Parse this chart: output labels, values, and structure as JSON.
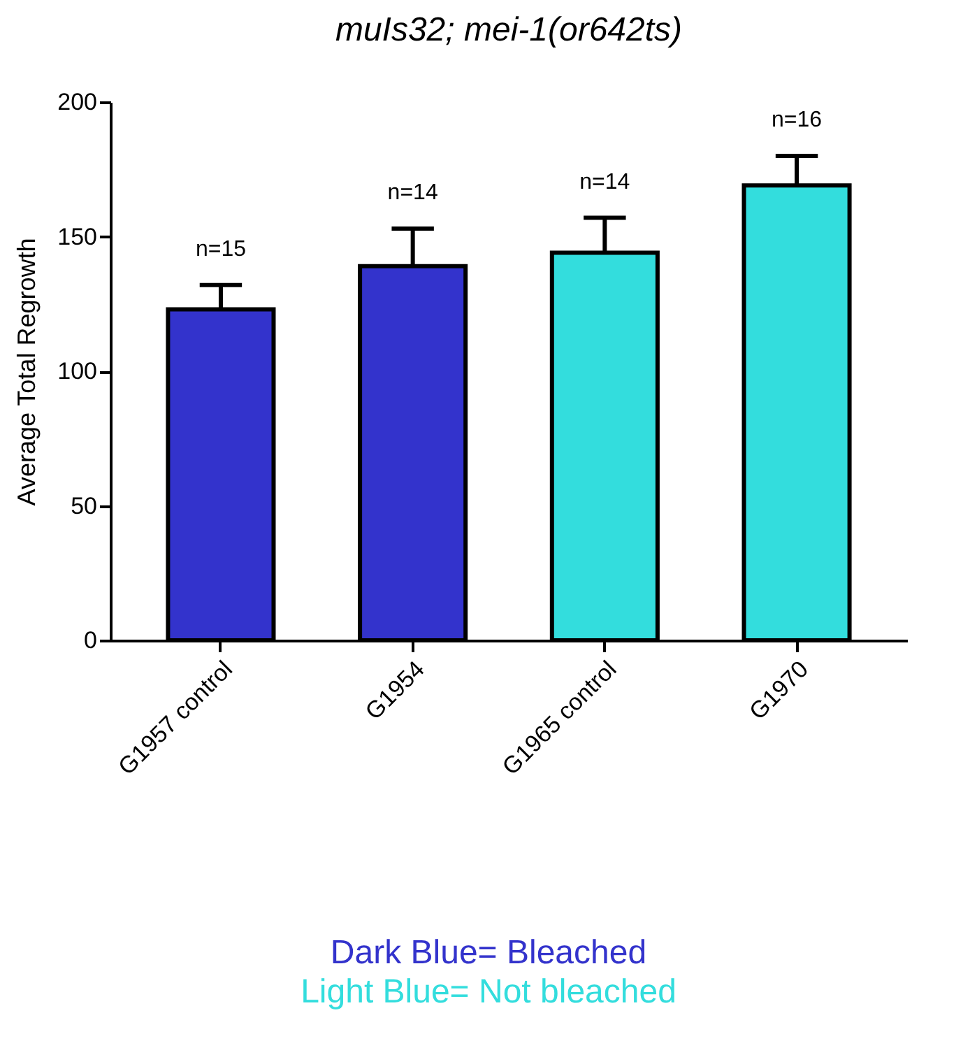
{
  "chart_data": {
    "type": "bar",
    "title": "muIs32; mei-1(or642ts)",
    "ylabel": "Average Total Regrowth",
    "categories": [
      "G1957 control",
      "G1954",
      "G1965 control",
      "G1970"
    ],
    "values": [
      123,
      139,
      144,
      169
    ],
    "errors": [
      [
        123,
        132
      ],
      [
        139,
        153
      ],
      [
        144,
        157
      ],
      [
        169,
        180
      ]
    ],
    "colors": [
      "#3333cc",
      "#3333cc",
      "#33dddd",
      "#33dddd"
    ],
    "ylim": [
      0,
      200
    ],
    "yticks": [
      0,
      50,
      100,
      150,
      200
    ],
    "annotations": [
      {
        "text": "n=15",
        "x": "G1957 control",
        "y": 132
      },
      {
        "text": "n=14",
        "x": "G1954",
        "y": 153
      },
      {
        "text": "n=14",
        "x": "G1965 control",
        "y": 157
      },
      {
        "text": "n=16",
        "x": "G1970",
        "y": 180
      },
      "Dark Blue= Bleached",
      "Light Blue= Not bleached"
    ]
  }
}
